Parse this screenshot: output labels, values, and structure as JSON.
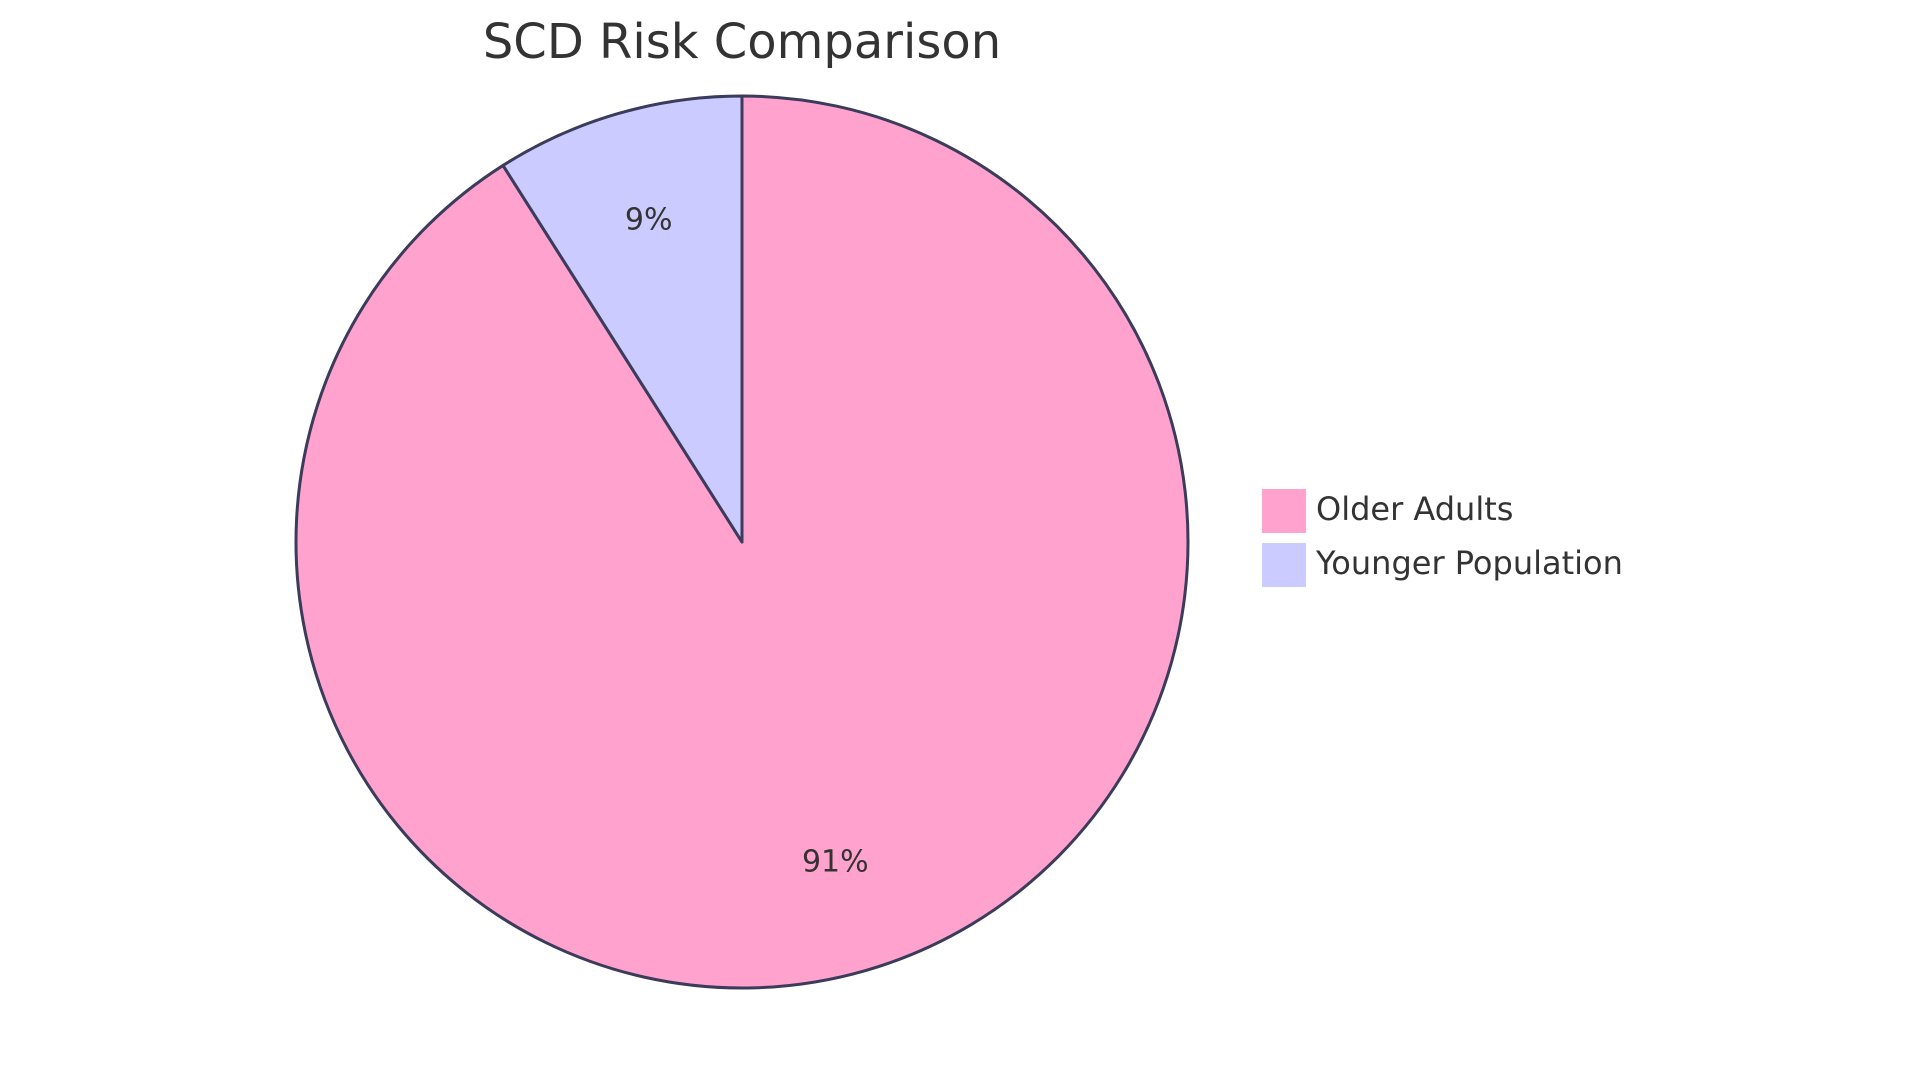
{
  "chart_data": {
    "type": "pie",
    "title": "SCD Risk Comparison",
    "slices": [
      {
        "label": "Older Adults",
        "value": 91,
        "display": "91%",
        "color": "#FFA3CE"
      },
      {
        "label": "Younger Population",
        "value": 9,
        "display": "9%",
        "color": "#CBCBFF"
      }
    ],
    "stroke_color": "#3B3B5C",
    "legend_position": "right"
  }
}
